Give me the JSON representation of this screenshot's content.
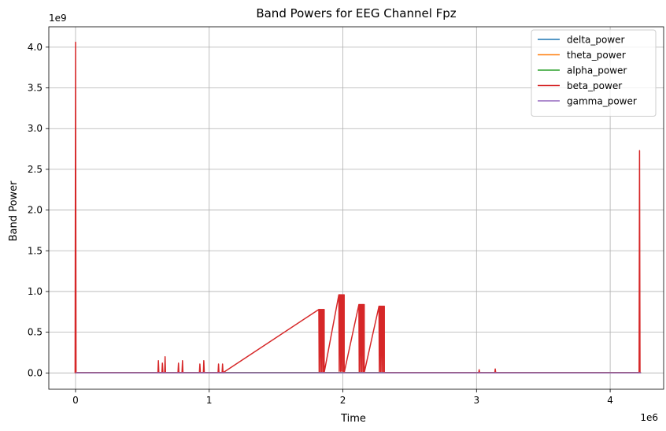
{
  "chart_data": {
    "type": "line",
    "title": "Band Powers for EEG Channel Fpz",
    "xlabel": "Time",
    "ylabel": "Band Power",
    "x_offset_label": "1e6",
    "y_offset_label": "1e9",
    "xlim": [
      -0.2,
      4.4
    ],
    "ylim": [
      -0.2,
      4.25
    ],
    "x_ticks": [
      0,
      1,
      2,
      3,
      4
    ],
    "y_ticks": [
      0.0,
      0.5,
      1.0,
      1.5,
      2.0,
      2.5,
      3.0,
      3.5,
      4.0
    ],
    "x_tick_labels": [
      "0",
      "1",
      "2",
      "3",
      "4"
    ],
    "y_tick_labels": [
      "0.0",
      "0.5",
      "1.0",
      "1.5",
      "2.0",
      "2.5",
      "3.0",
      "3.5",
      "4.0"
    ],
    "grid": true,
    "legend_position": "top-right",
    "x_range": [
      0.0,
      4.23
    ],
    "series": [
      {
        "name": "delta_power",
        "color": "#1f77b4",
        "values": [
          0.005,
          0.005
        ]
      },
      {
        "name": "theta_power",
        "color": "#ff7f0e",
        "values": [
          0.004,
          0.004
        ]
      },
      {
        "name": "alpha_power",
        "color": "#2ca02c",
        "values": [
          0.003,
          0.003
        ]
      },
      {
        "name": "beta_power",
        "color": "#d62728",
        "baseline": 0.003,
        "spikes": [
          {
            "x": 0.0,
            "peak": 4.06
          },
          {
            "x": 0.62,
            "peak": 0.15
          },
          {
            "x": 0.65,
            "peak": 0.12
          },
          {
            "x": 0.67,
            "peak": 0.2
          },
          {
            "x": 0.77,
            "peak": 0.12
          },
          {
            "x": 0.8,
            "peak": 0.15
          },
          {
            "x": 0.93,
            "peak": 0.11
          },
          {
            "x": 0.96,
            "peak": 0.15
          },
          {
            "x": 1.07,
            "peak": 0.11
          },
          {
            "x": 1.1,
            "peak": 0.11
          },
          {
            "x": 3.02,
            "peak": 0.04
          },
          {
            "x": 3.14,
            "peak": 0.05
          },
          {
            "x": 4.22,
            "peak": 2.73
          }
        ],
        "bursts": [
          {
            "x_start": 1.82,
            "x_end": 1.86,
            "peak": 0.78
          },
          {
            "x_start": 1.97,
            "x_end": 2.01,
            "peak": 0.96
          },
          {
            "x_start": 2.12,
            "x_end": 2.16,
            "peak": 0.84
          },
          {
            "x_start": 2.27,
            "x_end": 2.31,
            "peak": 0.82
          }
        ]
      },
      {
        "name": "gamma_power",
        "color": "#9467bd",
        "values": [
          0.002,
          0.002
        ]
      }
    ]
  }
}
